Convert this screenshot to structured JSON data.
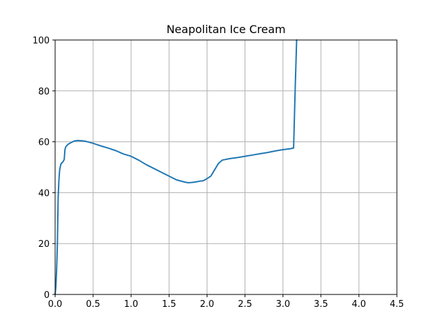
{
  "chart_data": {
    "type": "line",
    "title": "Neapolitan Ice Cream",
    "xlabel": "",
    "ylabel": "",
    "xlim": [
      0,
      4.5
    ],
    "ylim": [
      0,
      100
    ],
    "grid": true,
    "x_ticks": [
      0.0,
      0.5,
      1.0,
      1.5,
      2.0,
      2.5,
      3.0,
      3.5,
      4.0,
      4.5
    ],
    "x_tick_labels": [
      "0.0",
      "0.5",
      "1.0",
      "1.5",
      "2.0",
      "2.5",
      "3.0",
      "3.5",
      "4.0",
      "4.5"
    ],
    "y_ticks": [
      0,
      20,
      40,
      60,
      80,
      100
    ],
    "y_tick_labels": [
      "0",
      "20",
      "40",
      "60",
      "80",
      "100"
    ],
    "series": [
      {
        "color": "#1f77b4",
        "x": [
          0.0,
          0.01,
          0.02,
          0.03,
          0.04,
          0.05,
          0.06,
          0.07,
          0.08,
          0.1,
          0.12,
          0.13,
          0.14,
          0.17,
          0.2,
          0.25,
          0.3,
          0.35,
          0.4,
          0.45,
          0.5,
          0.55,
          0.6,
          0.7,
          0.8,
          0.9,
          1.0,
          1.1,
          1.2,
          1.3,
          1.4,
          1.5,
          1.6,
          1.7,
          1.75,
          1.8,
          1.85,
          1.9,
          1.95,
          2.0,
          2.05,
          2.1,
          2.15,
          2.2,
          2.3,
          2.4,
          2.5,
          2.6,
          2.7,
          2.8,
          2.9,
          3.0,
          3.1,
          3.14,
          3.16,
          3.18
        ],
        "y": [
          0,
          3,
          10,
          20,
          38,
          45,
          49,
          50.5,
          51.5,
          52,
          53,
          57,
          58,
          59,
          59.5,
          60.3,
          60.5,
          60.4,
          60.2,
          59.8,
          59.4,
          58.9,
          58.4,
          57.5,
          56.5,
          55.2,
          54.3,
          52.8,
          51,
          49.5,
          48,
          46.5,
          45,
          44.2,
          43.9,
          44,
          44.2,
          44.5,
          44.7,
          45.5,
          46.5,
          49,
          51.5,
          52.8,
          53.4,
          53.8,
          54.3,
          54.8,
          55.3,
          55.8,
          56.4,
          56.9,
          57.3,
          57.6,
          80,
          100
        ]
      }
    ]
  }
}
